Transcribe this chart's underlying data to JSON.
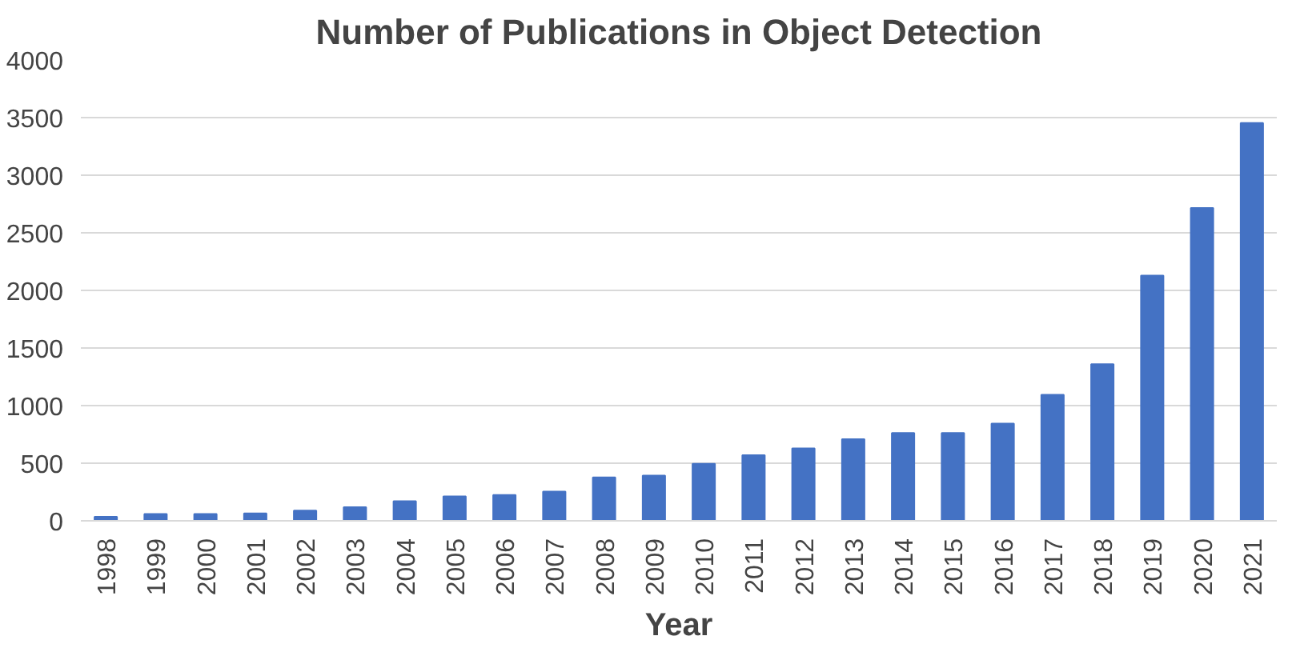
{
  "chart_data": {
    "type": "bar",
    "title": "Number of Publications in Object Detection",
    "xlabel": "Year",
    "categories": [
      "1998",
      "1999",
      "2000",
      "2001",
      "2002",
      "2003",
      "2004",
      "2005",
      "2006",
      "2007",
      "2008",
      "2009",
      "2010",
      "2011",
      "2012",
      "2013",
      "2014",
      "2015",
      "2016",
      "2017",
      "2018",
      "2019",
      "2020",
      "2021"
    ],
    "values": [
      35,
      59,
      59,
      65,
      88,
      118,
      171,
      212,
      224,
      253,
      376,
      392,
      494,
      570,
      628,
      709,
      762,
      762,
      843,
      1093,
      1360,
      2128,
      2715,
      3453
    ],
    "color": "#4472c4",
    "ylim": [
      0,
      4000
    ],
    "yticks": [
      0,
      500,
      1000,
      1500,
      2000,
      2500,
      3000,
      3500,
      4000
    ],
    "grid": "y"
  }
}
